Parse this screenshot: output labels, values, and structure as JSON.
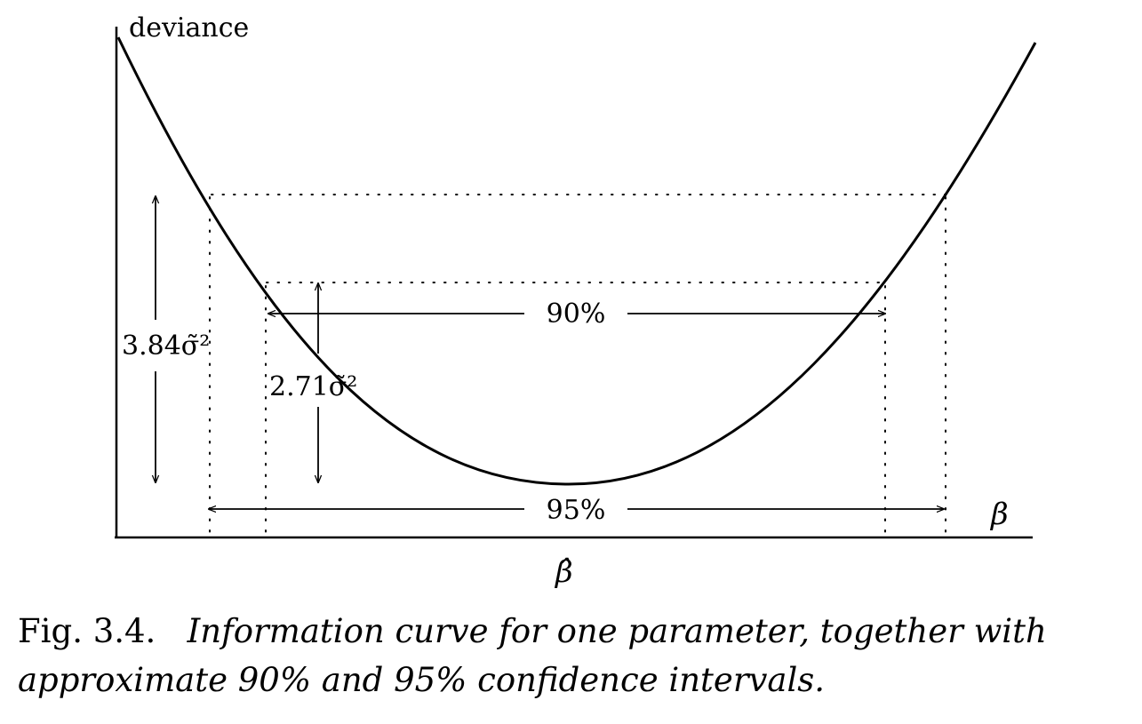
{
  "diagram": {
    "y_axis_label": "deviance",
    "x_axis_label": "β",
    "estimate_label": "β̂",
    "interval_90_label": "90%",
    "interval_95_label": "95%",
    "height_384_label": "3.84σ̃²",
    "height_271_label": "2.71σ̃²"
  },
  "caption": {
    "fig_number": "Fig. 3.4.",
    "text": "Information curve for one parameter, together with approximate 90% and 95% confidence intervals."
  }
}
